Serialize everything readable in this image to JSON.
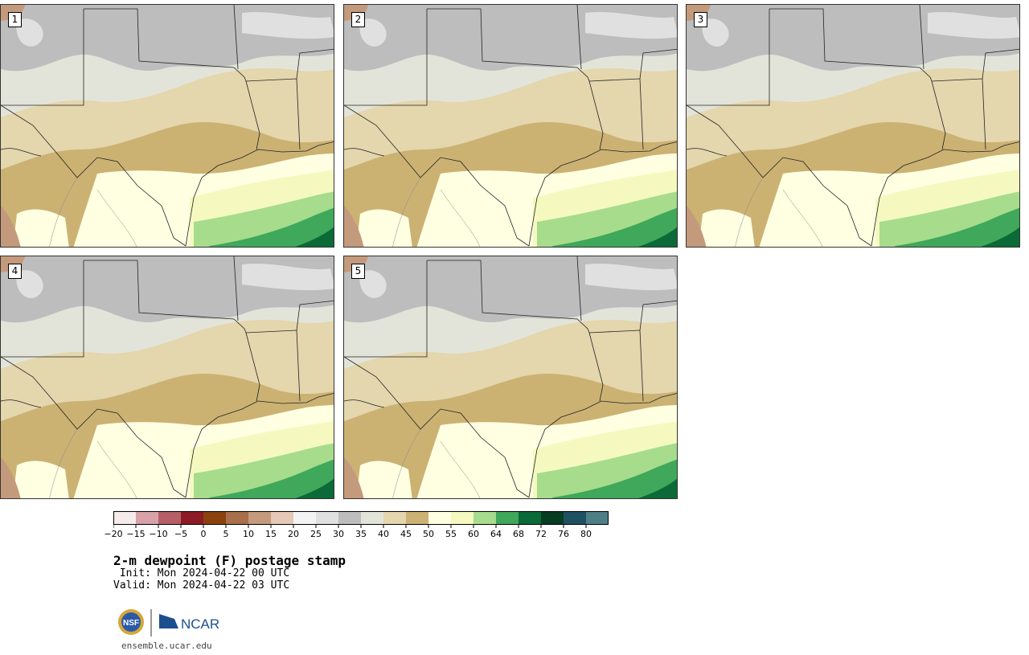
{
  "panels": [
    {
      "label": "1",
      "member": 1
    },
    {
      "label": "2",
      "member": 2
    },
    {
      "label": "3",
      "member": 3
    },
    {
      "label": "4",
      "member": 4
    },
    {
      "label": "5",
      "member": 5
    }
  ],
  "colorbar": {
    "colors": [
      "#f4ebea",
      "#d7a1a8",
      "#b65f67",
      "#8c1b25",
      "#8b420f",
      "#a86f4b",
      "#c49a7c",
      "#e5c8b5",
      "#f3f3f3",
      "#e0e0e0",
      "#bdbdbd",
      "#e3e4d9",
      "#e4d6ad",
      "#cbb273",
      "#ffffe2",
      "#f5f9c0",
      "#a6dc8c",
      "#3fa85a",
      "#0b6a37",
      "#083c23",
      "#1e5161",
      "#4f7f86"
    ],
    "tick_labels": [
      "−20",
      "−15",
      "−10",
      "−5",
      "0",
      "5",
      "10",
      "15",
      "20",
      "25",
      "30",
      "35",
      "40",
      "45",
      "50",
      "55",
      "60",
      "64",
      "68",
      "72",
      "76",
      "80"
    ]
  },
  "title": "2-m dewpoint (F) postage stamp",
  "init": " Init: Mon 2024-04-22 00 UTC",
  "valid": "Valid: Mon 2024-04-22 03 UTC",
  "logos": {
    "nsf": "NSF",
    "ncar": "NCAR"
  },
  "url": "ensemble.ucar.edu"
}
